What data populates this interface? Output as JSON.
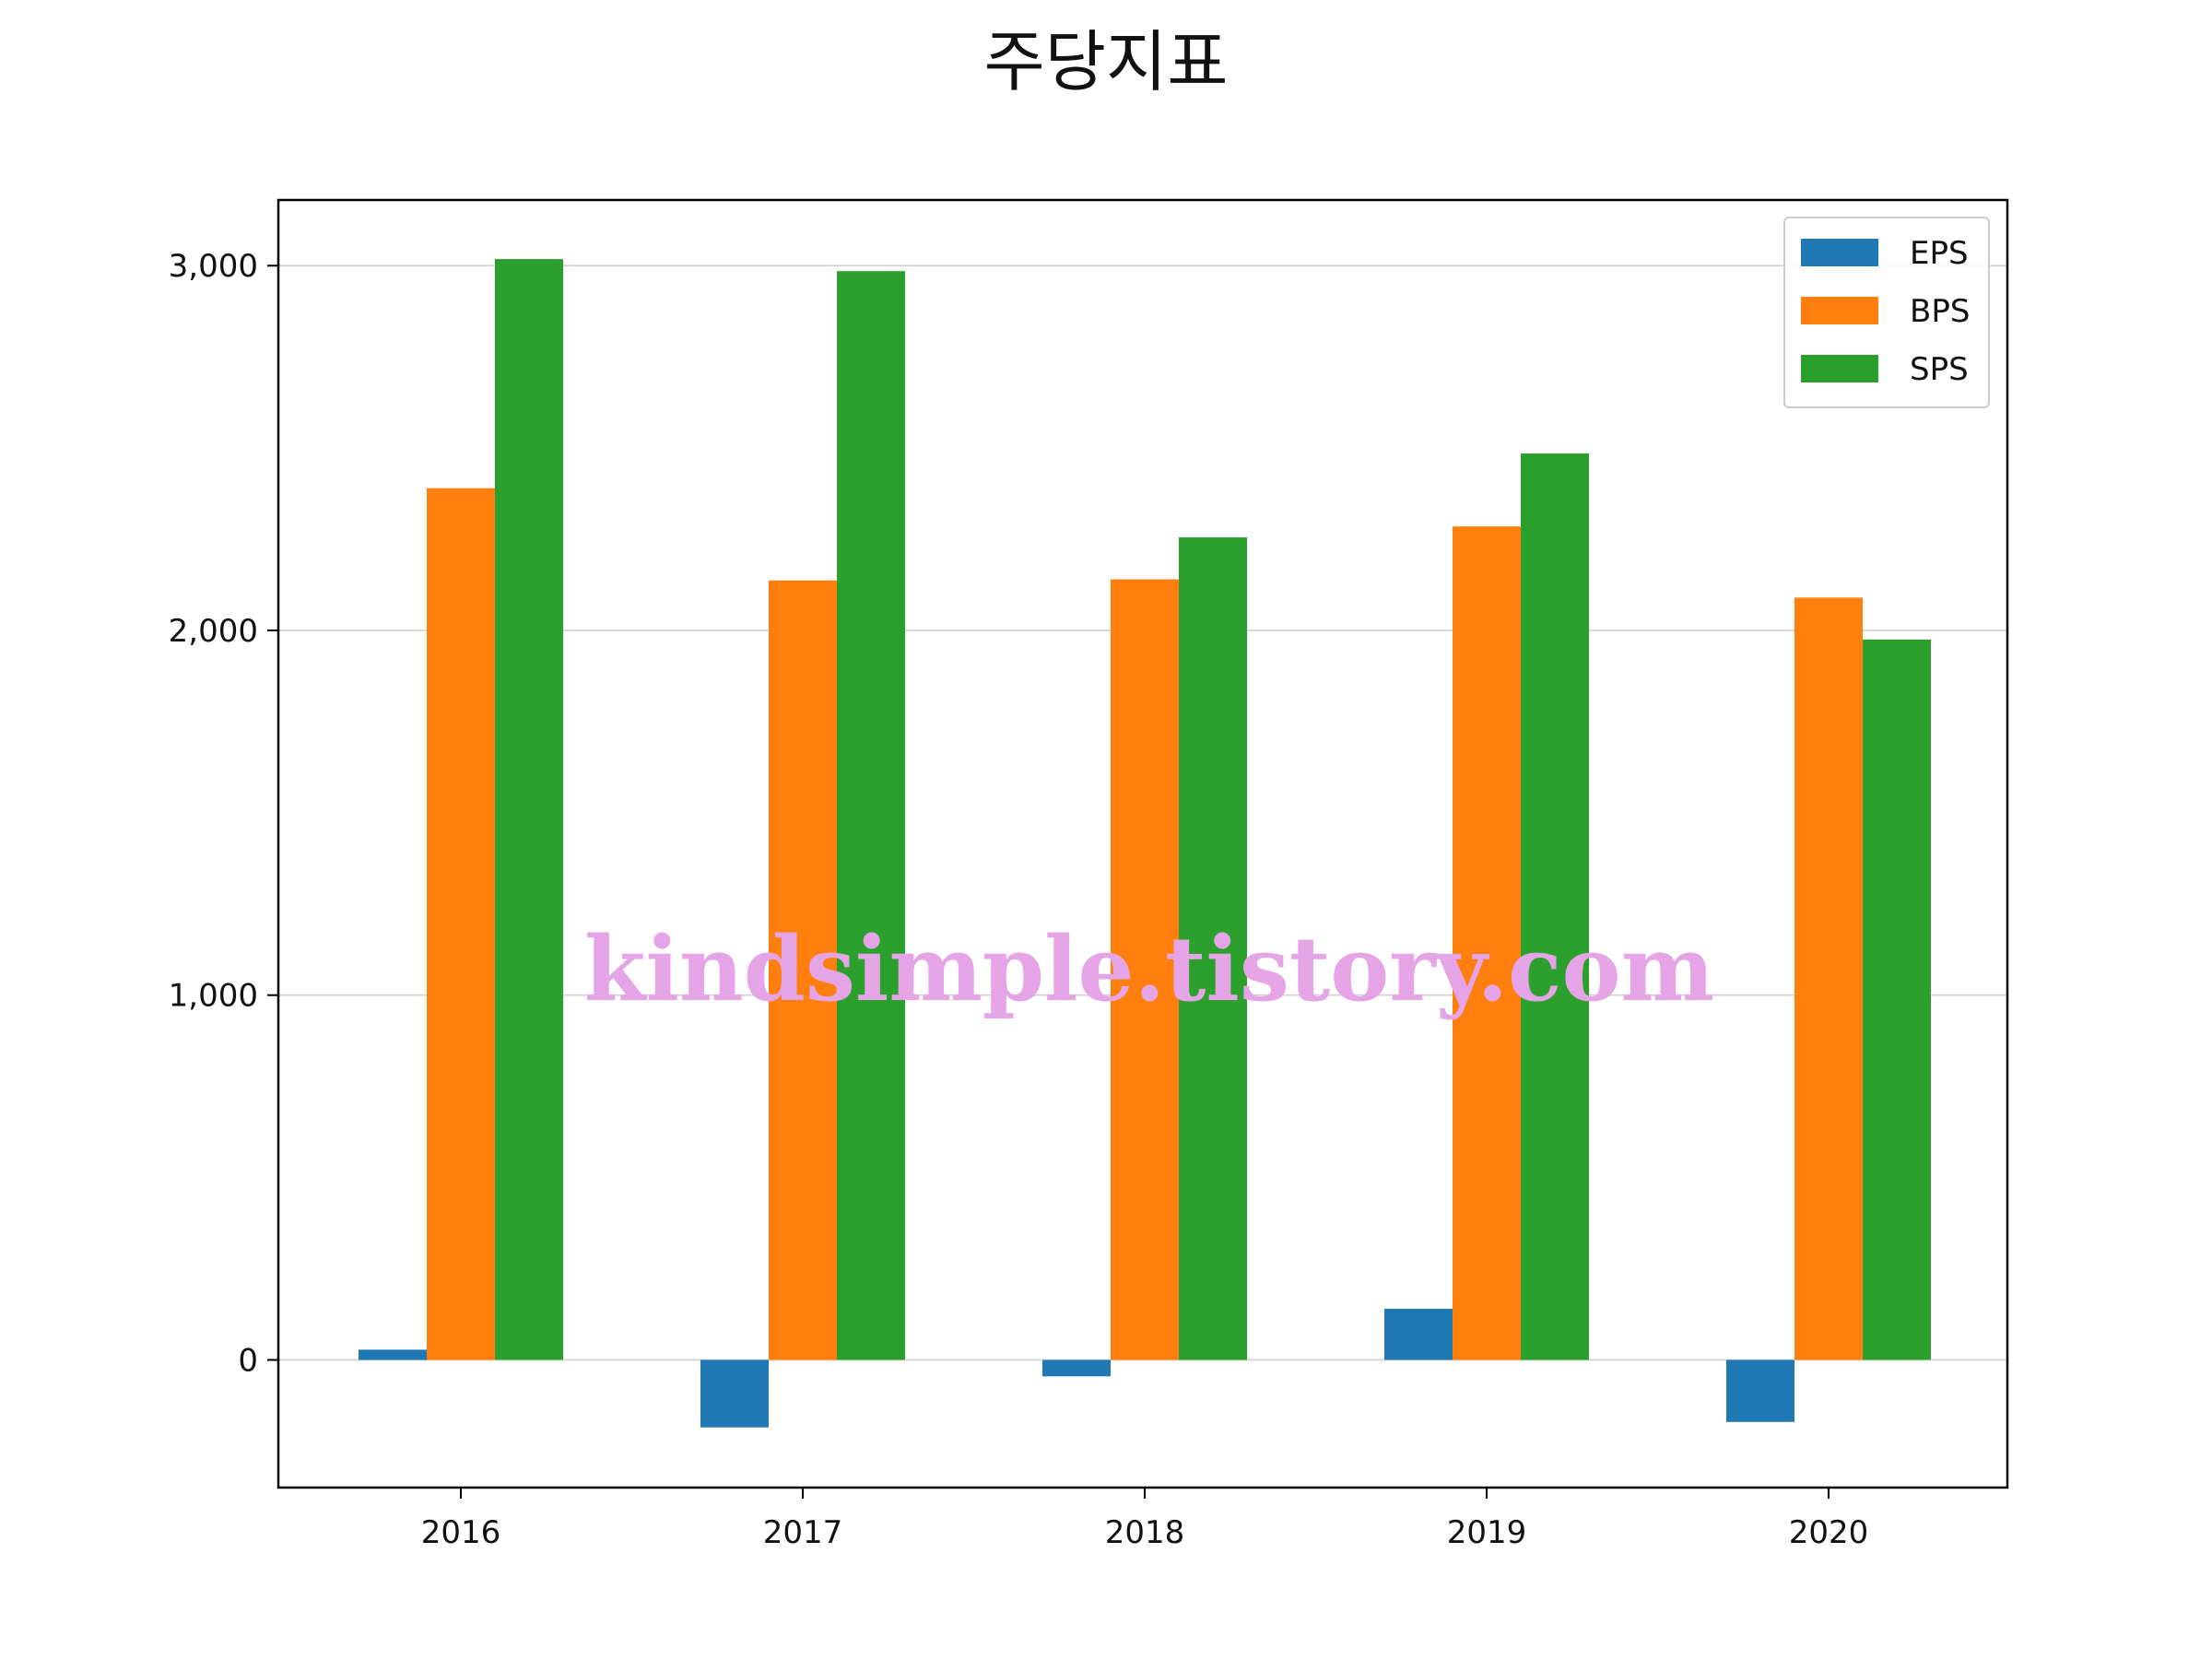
{
  "chart_data": {
    "type": "bar",
    "title": "주당지표",
    "xlabel": "",
    "ylabel": "",
    "categories": [
      "2016",
      "2017",
      "2018",
      "2019",
      "2020"
    ],
    "series": [
      {
        "name": "EPS",
        "color": "#1f77b4",
        "values": [
          28,
          -185,
          -45,
          140,
          -170
        ]
      },
      {
        "name": "BPS",
        "color": "#ff7f0e",
        "values": [
          2390,
          2137,
          2140,
          2285,
          2090
        ]
      },
      {
        "name": "SPS",
        "color": "#2ca02c",
        "values": [
          3018,
          2985,
          2255,
          2485,
          1975
        ]
      }
    ],
    "ylim": [
      -350,
      3180
    ],
    "yticks": [
      0,
      1000,
      2000,
      3000
    ],
    "ytick_labels": [
      "0",
      "1,000",
      "2,000",
      "3,000"
    ],
    "grid": "horizontal",
    "legend_position": "upper right",
    "watermark": "kindsimple.tistory.com",
    "watermark_color": "#e5a4e6"
  }
}
